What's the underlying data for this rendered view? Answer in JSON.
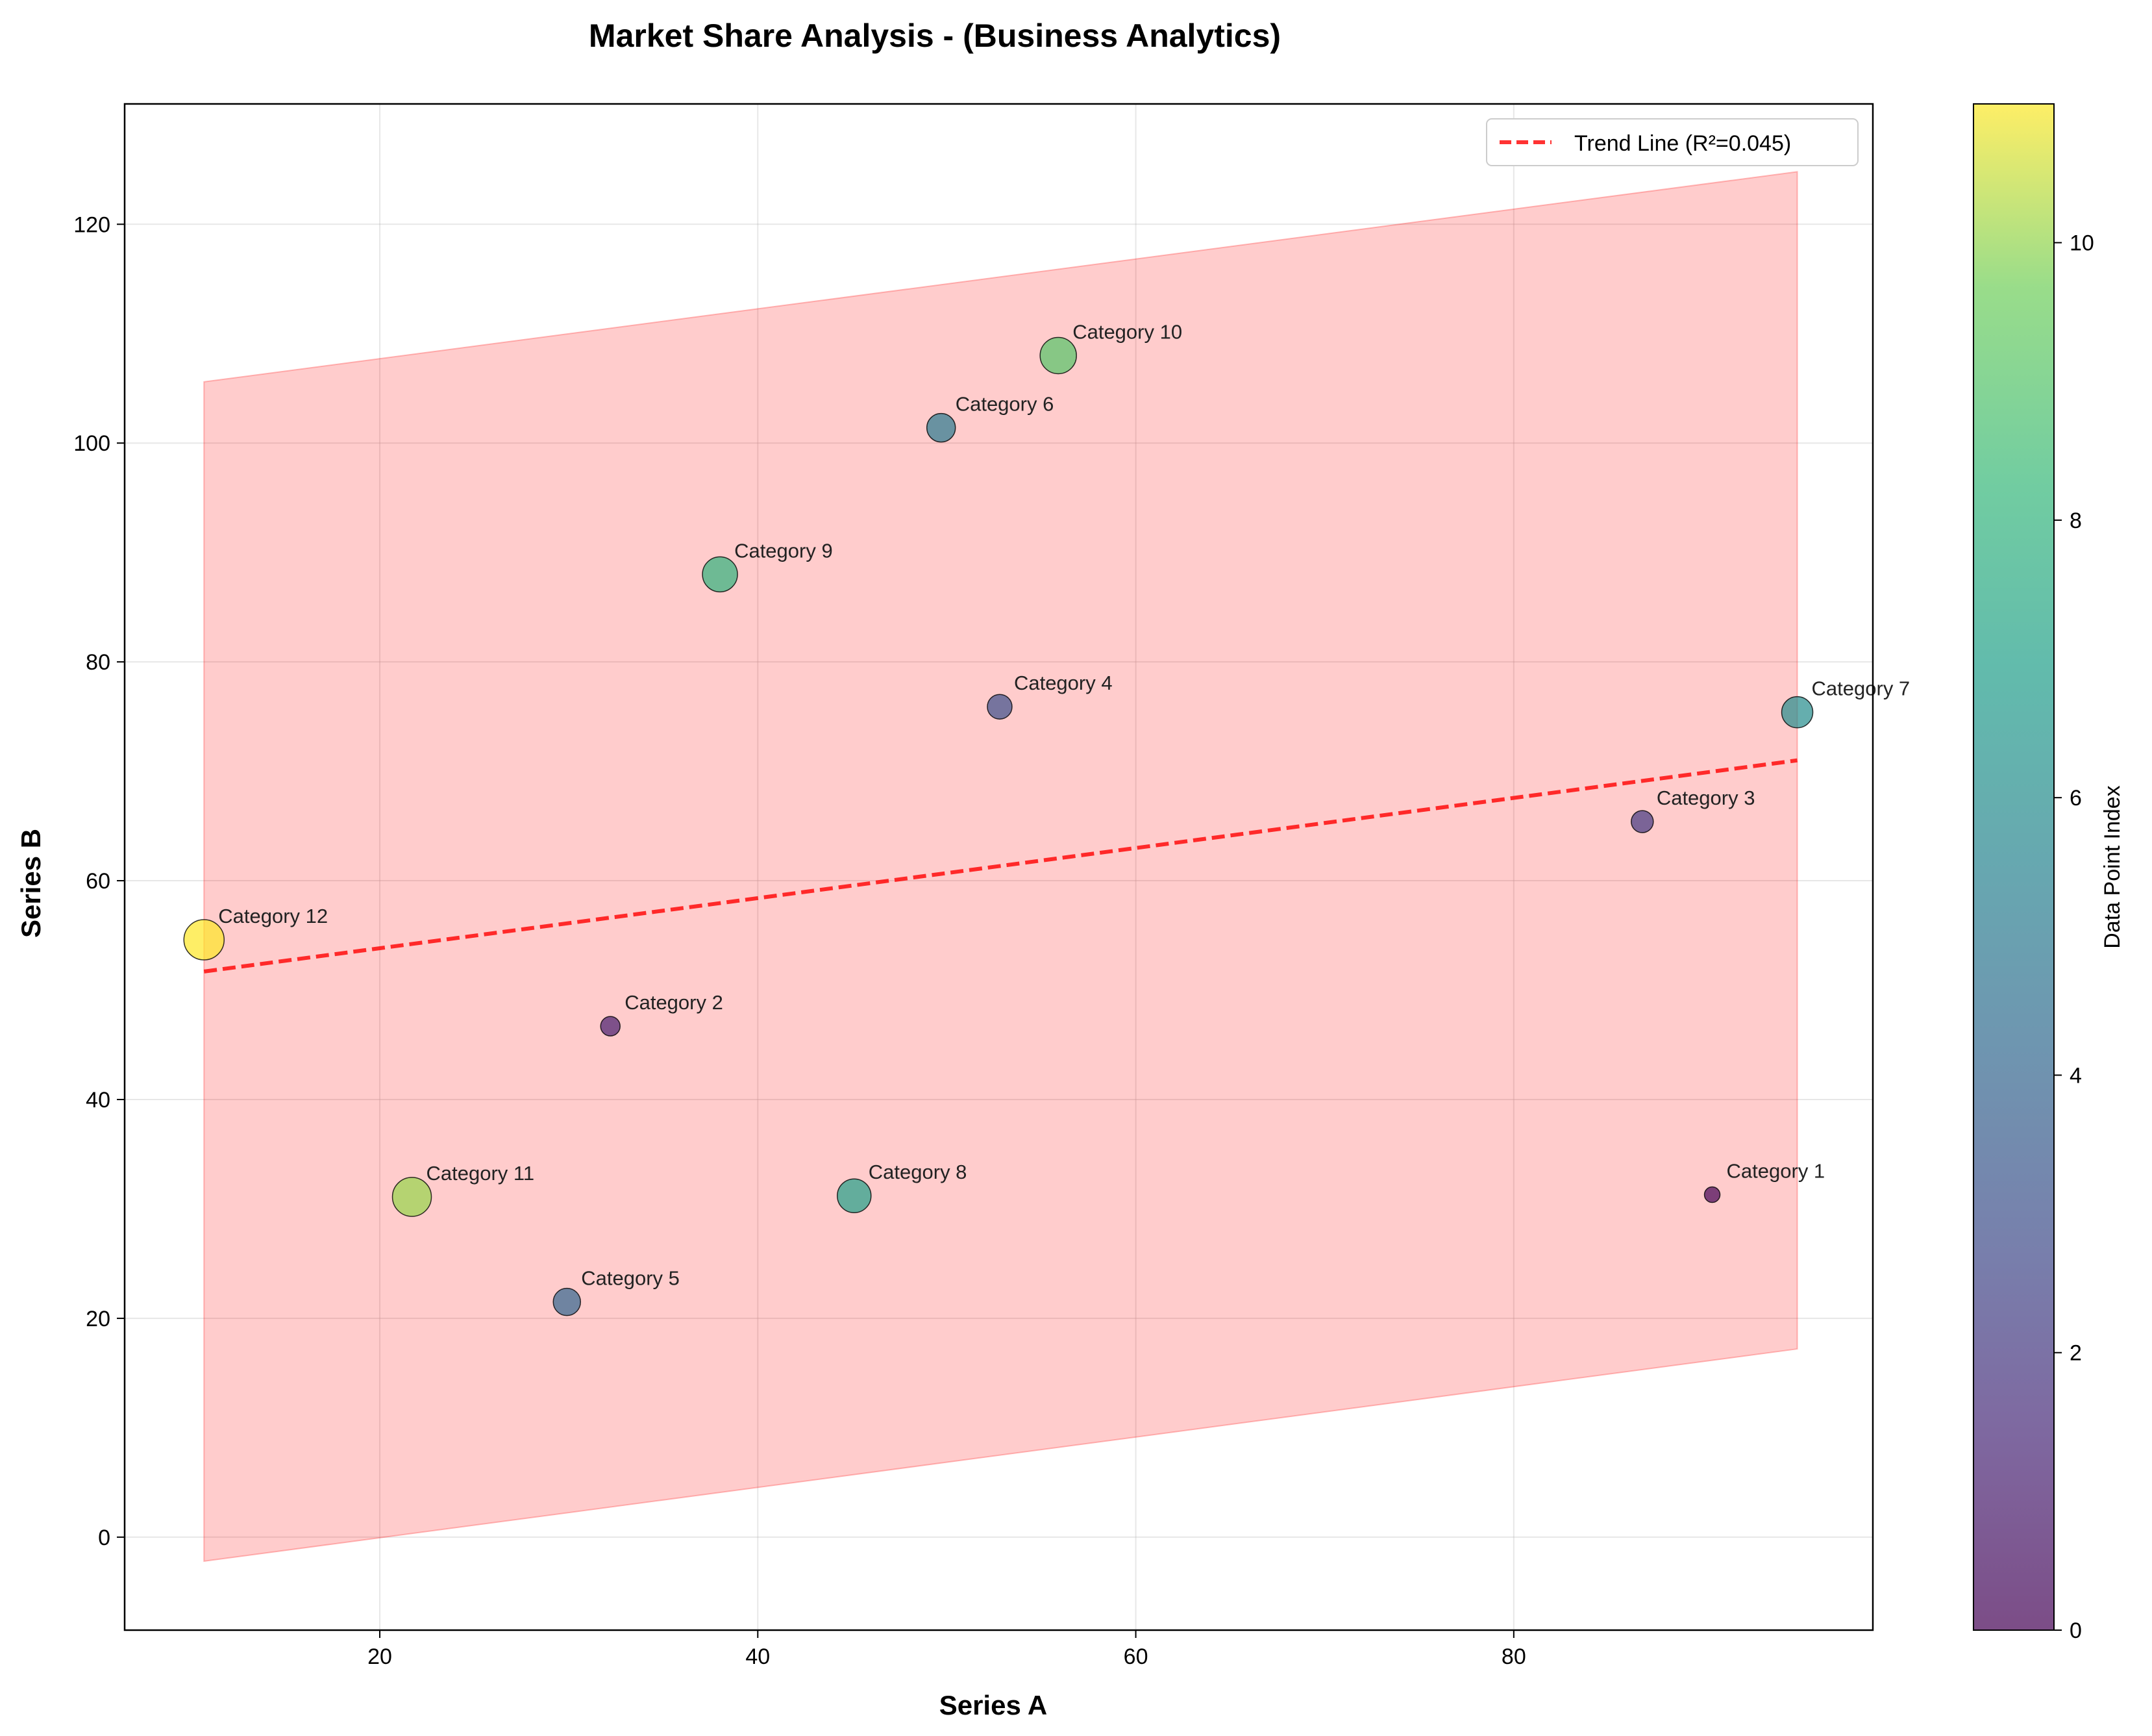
{
  "chart_data": {
    "type": "scatter",
    "title": "Market Share Analysis - (Business Analytics)",
    "xlabel": "Series A",
    "ylabel": "Series B",
    "xlim": [
      6.5,
      99
    ],
    "ylim": [
      -8.5,
      131
    ],
    "xticks": [
      20,
      40,
      60,
      80
    ],
    "yticks": [
      0,
      20,
      40,
      60,
      80,
      100,
      120
    ],
    "grid": true,
    "legend": {
      "position": "top-right",
      "entries": [
        "Trend Line (R²=0.045)"
      ]
    },
    "points": [
      {
        "label": "Category 1",
        "x": 90.5,
        "y": 31.3,
        "index": 0,
        "size": 12
      },
      {
        "label": "Category 2",
        "x": 32.2,
        "y": 46.7,
        "index": 1,
        "size": 15
      },
      {
        "label": "Category 3",
        "x": 86.8,
        "y": 65.4,
        "index": 2,
        "size": 17
      },
      {
        "label": "Category 4",
        "x": 52.8,
        "y": 75.9,
        "index": 3,
        "size": 19
      },
      {
        "label": "Category 5",
        "x": 29.9,
        "y": 21.5,
        "index": 4,
        "size": 21
      },
      {
        "label": "Category 6",
        "x": 49.7,
        "y": 101.4,
        "index": 5,
        "size": 22
      },
      {
        "label": "Category 7",
        "x": 95.0,
        "y": 75.4,
        "index": 6,
        "size": 24
      },
      {
        "label": "Category 8",
        "x": 45.1,
        "y": 31.2,
        "index": 7,
        "size": 26
      },
      {
        "label": "Category 9",
        "x": 38.0,
        "y": 88.0,
        "index": 8,
        "size": 27
      },
      {
        "label": "Category 10",
        "x": 55.9,
        "y": 108.0,
        "index": 9,
        "size": 28
      },
      {
        "label": "Category 11",
        "x": 21.7,
        "y": 31.1,
        "index": 10,
        "size": 30
      },
      {
        "label": "Category 12",
        "x": 10.7,
        "y": 54.6,
        "index": 11,
        "size": 31
      }
    ],
    "trend_line": {
      "label": "Trend Line (R²=0.045)",
      "x": [
        10.7,
        95.0
      ],
      "y": [
        51.7,
        71.0
      ],
      "color": "#ff0000"
    },
    "confidence_band": {
      "x": [
        10.7,
        95.0
      ],
      "upper": [
        105.6,
        124.8
      ],
      "lower": [
        -2.2,
        17.2
      ],
      "color": "#ff9999"
    },
    "colorbar": {
      "label": "Data Point Index",
      "range": [
        0,
        11
      ],
      "ticks": [
        0,
        2,
        4,
        6,
        8,
        10
      ],
      "colormap": "viridis"
    }
  }
}
